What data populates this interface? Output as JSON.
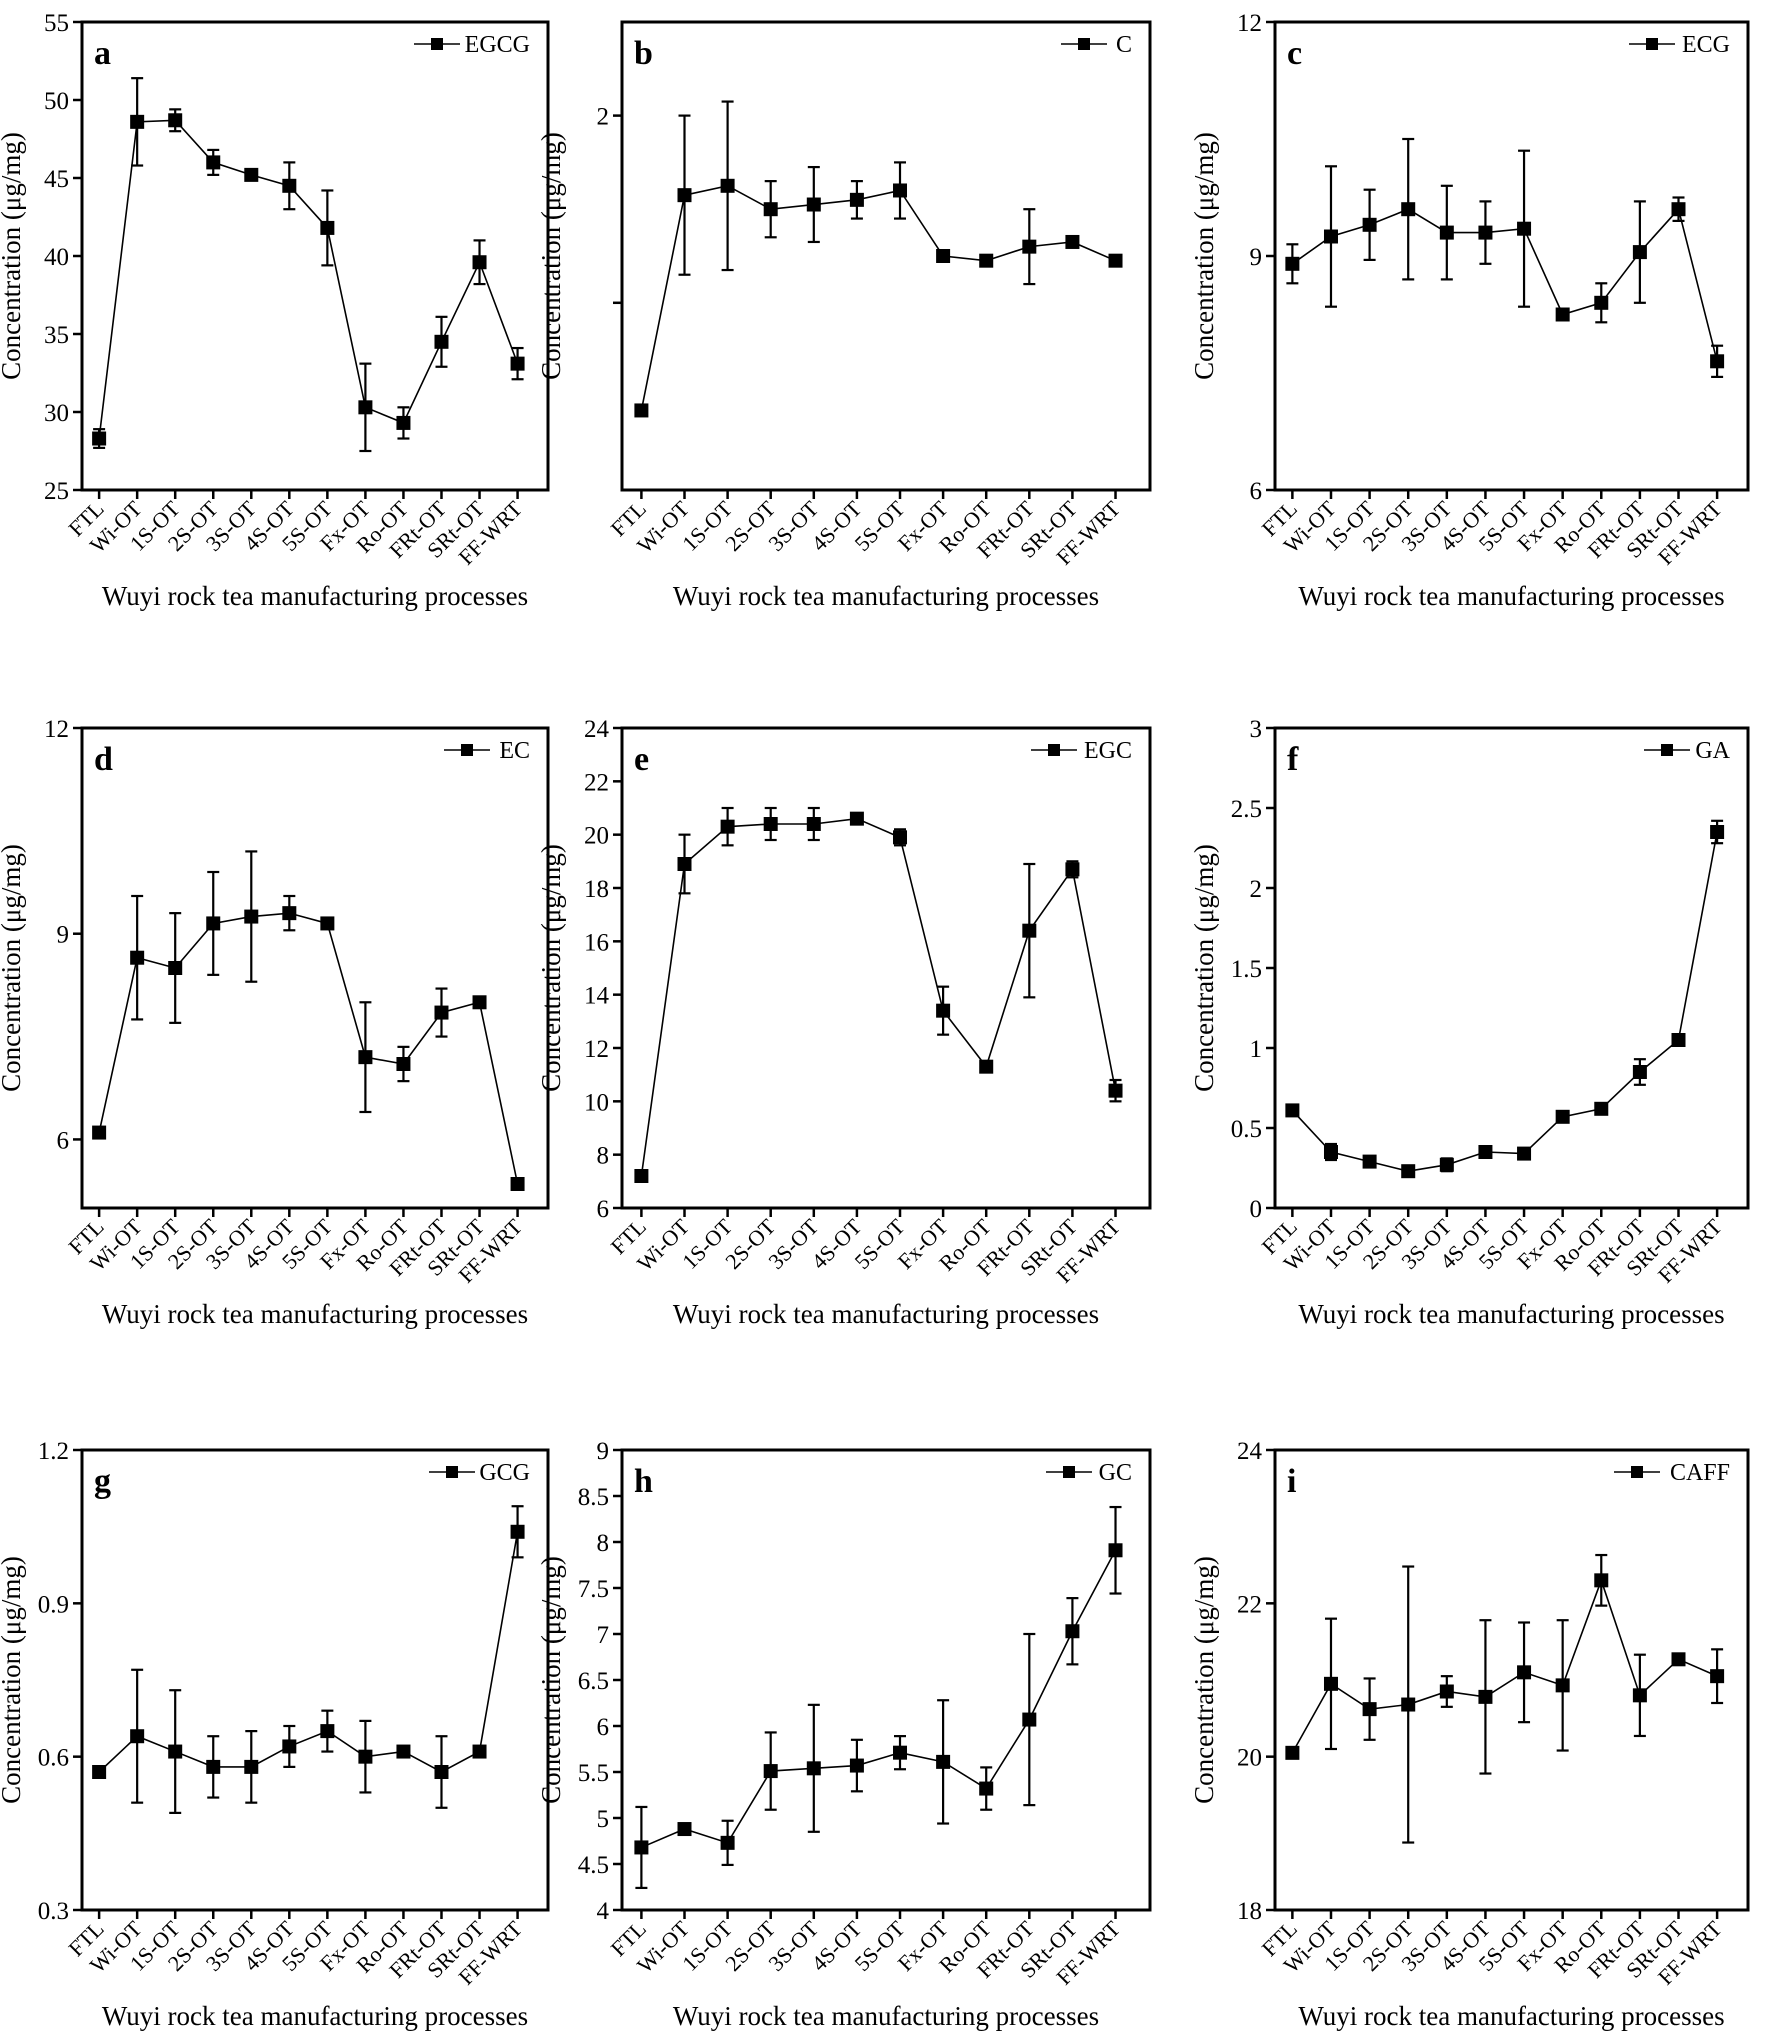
{
  "chart_data": [
    {
      "type": "line",
      "panel_label": "a",
      "series": [
        {
          "name": "EGCG",
          "values": [
            28.3,
            48.6,
            48.7,
            46.0,
            45.2,
            44.5,
            41.8,
            30.3,
            29.3,
            34.5,
            39.6,
            33.1
          ],
          "errors": [
            0.6,
            2.8,
            0.7,
            0.8,
            0.2,
            1.5,
            2.4,
            2.8,
            1.0,
            1.6,
            1.4,
            1.0
          ]
        }
      ],
      "categories": [
        "FTL",
        "Wi-OT",
        "1S-OT",
        "2S-OT",
        "3S-OT",
        "4S-OT",
        "5S-OT",
        "Fx-OT",
        "Ro-OT",
        "FRt-OT",
        "SRt-OT",
        "FF-WRT"
      ],
      "ylim": [
        25,
        55
      ],
      "yticks": [
        "25",
        "30",
        "35",
        "40",
        "45",
        "50",
        "55"
      ],
      "ylabel": "Concentration (μg/mg)",
      "xlabel": "Wuyi rock tea manufacturing processes",
      "legend_position": "top-right",
      "grid": false
    },
    {
      "type": "line",
      "panel_label": "b",
      "series": [
        {
          "name": "C",
          "values": [
            1.37,
            1.83,
            1.85,
            1.8,
            1.81,
            1.82,
            1.84,
            1.7,
            1.69,
            1.72,
            1.73,
            1.69
          ],
          "errors": [
            0.0,
            0.17,
            0.18,
            0.06,
            0.08,
            0.04,
            0.06,
            0.01,
            0.01,
            0.08,
            0.0,
            0.01
          ]
        }
      ],
      "categories": [
        "FTL",
        "Wi-OT",
        "1S-OT",
        "2S-OT",
        "3S-OT",
        "4S-OT",
        "5S-OT",
        "Fx-OT",
        "Ro-OT",
        "FRt-OT",
        "SRt-OT",
        "FF-WRT"
      ],
      "ylim": [
        1.2,
        2.2
      ],
      "yticks": [
        "",
        "2"
      ],
      "ylabel": "Concentration (μg/mg)",
      "xlabel": "Wuyi rock tea manufacturing processes",
      "legend_position": "top-right",
      "grid": false
    },
    {
      "type": "line",
      "panel_label": "c",
      "series": [
        {
          "name": "ECG",
          "values": [
            8.9,
            9.25,
            9.4,
            9.6,
            9.3,
            9.3,
            9.35,
            8.25,
            8.4,
            9.05,
            9.6,
            7.65
          ],
          "errors": [
            0.25,
            0.9,
            0.45,
            0.9,
            0.6,
            0.4,
            1.0,
            0.05,
            0.25,
            0.65,
            0.15,
            0.2
          ]
        }
      ],
      "categories": [
        "FTL",
        "Wi-OT",
        "1S-OT",
        "2S-OT",
        "3S-OT",
        "4S-OT",
        "5S-OT",
        "Fx-OT",
        "Ro-OT",
        "FRt-OT",
        "SRt-OT",
        "FF-WRT"
      ],
      "ylim": [
        6,
        12
      ],
      "yticks": [
        "6",
        "9",
        "12"
      ],
      "ylabel": "Concentration (μg/mg)",
      "xlabel": "Wuyi rock tea manufacturing processes",
      "legend_position": "top-right",
      "grid": false
    },
    {
      "type": "line",
      "panel_label": "d",
      "series": [
        {
          "name": "EC",
          "values": [
            6.1,
            8.65,
            8.5,
            9.15,
            9.25,
            9.3,
            9.15,
            7.2,
            7.1,
            7.85,
            8.0,
            5.35
          ],
          "errors": [
            0.05,
            0.9,
            0.8,
            0.75,
            0.95,
            0.25,
            0.05,
            0.8,
            0.25,
            0.35,
            0.0,
            0.0
          ]
        }
      ],
      "categories": [
        "FTL",
        "Wi-OT",
        "1S-OT",
        "2S-OT",
        "3S-OT",
        "4S-OT",
        "5S-OT",
        "Fx-OT",
        "Ro-OT",
        "FRt-OT",
        "SRt-OT",
        "FF-WRT"
      ],
      "ylim": [
        5.0,
        12
      ],
      "yticks": [
        "6",
        "9",
        "12"
      ],
      "ylabel": "Concentration (μg/mg)",
      "xlabel": "Wuyi rock tea manufacturing processes",
      "legend_position": "top-right",
      "grid": false
    },
    {
      "type": "line",
      "panel_label": "e",
      "series": [
        {
          "name": "EGC",
          "values": [
            7.2,
            18.9,
            20.3,
            20.4,
            20.4,
            20.6,
            19.9,
            13.4,
            11.3,
            16.4,
            18.7,
            10.4
          ],
          "errors": [
            0.1,
            1.1,
            0.7,
            0.6,
            0.6,
            0.2,
            0.3,
            0.9,
            0.1,
            2.5,
            0.3,
            0.4
          ]
        }
      ],
      "categories": [
        "FTL",
        "Wi-OT",
        "1S-OT",
        "2S-OT",
        "3S-OT",
        "4S-OT",
        "5S-OT",
        "Fx-OT",
        "Ro-OT",
        "FRt-OT",
        "SRt-OT",
        "FF-WRT"
      ],
      "ylim": [
        6,
        24
      ],
      "yticks": [
        "6",
        "8",
        "10",
        "12",
        "14",
        "16",
        "18",
        "20",
        "22",
        "24"
      ],
      "ylabel": "Concentration (μg/mg)",
      "xlabel": "Wuyi rock tea manufacturing processes",
      "legend_position": "top-right",
      "grid": false
    },
    {
      "type": "line",
      "panel_label": "f",
      "series": [
        {
          "name": "GA",
          "values": [
            0.61,
            0.35,
            0.29,
            0.23,
            0.27,
            0.35,
            0.34,
            0.57,
            0.62,
            0.85,
            1.05,
            2.35
          ],
          "errors": [
            0.01,
            0.05,
            0.02,
            0.01,
            0.04,
            0.01,
            0.01,
            0.03,
            0.01,
            0.08,
            0.01,
            0.07
          ]
        }
      ],
      "categories": [
        "FTL",
        "Wi-OT",
        "1S-OT",
        "2S-OT",
        "3S-OT",
        "4S-OT",
        "5S-OT",
        "Fx-OT",
        "Ro-OT",
        "FRt-OT",
        "SRt-OT",
        "FF-WRT"
      ],
      "ylim": [
        0,
        3
      ],
      "yticks": [
        "0",
        "0.5",
        "1",
        "1.5",
        "2",
        "2.5",
        "3"
      ],
      "ylabel": "Concentration (μg/mg)",
      "xlabel": "Wuyi rock tea manufacturing processes",
      "legend_position": "top-right",
      "grid": false
    },
    {
      "type": "line",
      "panel_label": "g",
      "series": [
        {
          "name": "GCG",
          "values": [
            0.57,
            0.64,
            0.61,
            0.58,
            0.58,
            0.62,
            0.65,
            0.6,
            0.61,
            0.57,
            0.61,
            1.04
          ],
          "errors": [
            0.0,
            0.13,
            0.12,
            0.06,
            0.07,
            0.04,
            0.04,
            0.07,
            0.0,
            0.07,
            0.0,
            0.05
          ]
        }
      ],
      "categories": [
        "FTL",
        "Wi-OT",
        "1S-OT",
        "2S-OT",
        "3S-OT",
        "4S-OT",
        "5S-OT",
        "Fx-OT",
        "Ro-OT",
        "FRt-OT",
        "SRt-OT",
        "FF-WRT"
      ],
      "ylim": [
        0.3,
        1.2
      ],
      "yticks": [
        "0.3",
        "0.6",
        "0.9",
        "1.2"
      ],
      "ylabel": "Concentration (μg/mg)",
      "xlabel": "Wuyi rock tea manufacturing processes",
      "legend_position": "top-right",
      "grid": false
    },
    {
      "type": "line",
      "panel_label": "h",
      "series": [
        {
          "name": "GC",
          "values": [
            4.68,
            4.88,
            4.73,
            5.51,
            5.54,
            5.57,
            5.71,
            5.61,
            5.32,
            6.07,
            7.03,
            7.91
          ],
          "errors": [
            0.44,
            0.05,
            0.24,
            0.42,
            0.69,
            0.28,
            0.18,
            0.67,
            0.23,
            0.93,
            0.36,
            0.47
          ]
        }
      ],
      "categories": [
        "FTL",
        "Wi-OT",
        "1S-OT",
        "2S-OT",
        "3S-OT",
        "4S-OT",
        "5S-OT",
        "Fx-OT",
        "Ro-OT",
        "FRt-OT",
        "SRt-OT",
        "FF-WRT"
      ],
      "ylim": [
        4,
        9
      ],
      "yticks": [
        "4",
        "4.5",
        "5",
        "5.5",
        "6",
        "6.5",
        "7",
        "7.5",
        "8",
        "8.5",
        "9"
      ],
      "ylabel": "Concentration (μg/mg)",
      "xlabel": "Wuyi rock tea manufacturing processes",
      "legend_position": "top-right",
      "grid": false
    },
    {
      "type": "line",
      "panel_label": "i",
      "series": [
        {
          "name": "CAFF",
          "values": [
            20.05,
            20.95,
            20.62,
            20.68,
            20.85,
            20.78,
            21.1,
            20.93,
            22.3,
            20.8,
            21.27,
            21.05
          ],
          "errors": [
            0.0,
            0.85,
            0.4,
            1.8,
            0.2,
            1.0,
            0.65,
            0.85,
            0.33,
            0.53,
            0.0,
            0.35
          ]
        }
      ],
      "categories": [
        "FTL",
        "Wi-OT",
        "1S-OT",
        "2S-OT",
        "3S-OT",
        "4S-OT",
        "5S-OT",
        "Fx-OT",
        "Ro-OT",
        "FRt-OT",
        "SRt-OT",
        "FF-WRT"
      ],
      "ylim": [
        18,
        24
      ],
      "yticks": [
        "18",
        "20",
        "22",
        "24"
      ],
      "ylabel": "Concentration (μg/mg)",
      "xlabel": "Wuyi rock tea manufacturing processes",
      "legend_position": "top-right",
      "grid": false
    }
  ]
}
